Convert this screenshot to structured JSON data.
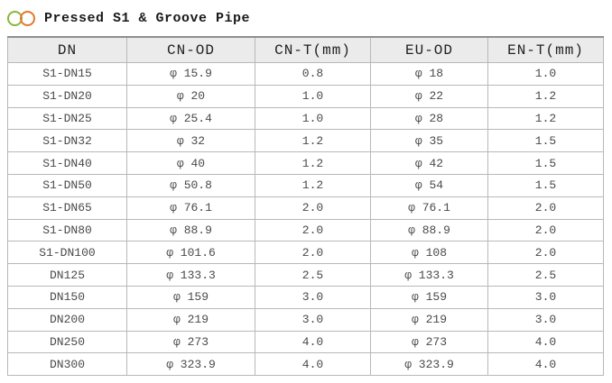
{
  "title": {
    "text": "Pressed S1 & Groove Pipe"
  },
  "icons": {
    "green_circle_color": "#8cb63c",
    "orange_circle_color": "#e07b2a"
  },
  "table": {
    "headers": [
      "DN",
      "CN-OD",
      "CN-T(mm)",
      "EU-OD",
      "EN-T(mm)"
    ],
    "rows": [
      [
        "S1-DN15",
        "φ 15.9",
        "0.8",
        "φ 18",
        "1.0"
      ],
      [
        "S1-DN20",
        "φ 20",
        "1.0",
        "φ 22",
        "1.2"
      ],
      [
        "S1-DN25",
        "φ 25.4",
        "1.0",
        "φ 28",
        "1.2"
      ],
      [
        "S1-DN32",
        "φ 32",
        "1.2",
        "φ 35",
        "1.5"
      ],
      [
        "S1-DN40",
        "φ 40",
        "1.2",
        "φ 42",
        "1.5"
      ],
      [
        "S1-DN50",
        "φ 50.8",
        "1.2",
        "φ 54",
        "1.5"
      ],
      [
        "S1-DN65",
        "φ 76.1",
        "2.0",
        "φ 76.1",
        "2.0"
      ],
      [
        "S1-DN80",
        "φ 88.9",
        "2.0",
        "φ 88.9",
        "2.0"
      ],
      [
        "S1-DN100",
        "φ 101.6",
        "2.0",
        "φ 108",
        "2.0"
      ],
      [
        "DN125",
        "φ 133.3",
        "2.5",
        "φ 133.3",
        "2.5"
      ],
      [
        "DN150",
        "φ 159",
        "3.0",
        "φ 159",
        "3.0"
      ],
      [
        "DN200",
        "φ 219",
        "3.0",
        "φ 219",
        "3.0"
      ],
      [
        "DN250",
        "φ 273",
        "4.0",
        "φ 273",
        "4.0"
      ],
      [
        "DN300",
        "φ 323.9",
        "4.0",
        "φ 323.9",
        "4.0"
      ]
    ]
  }
}
